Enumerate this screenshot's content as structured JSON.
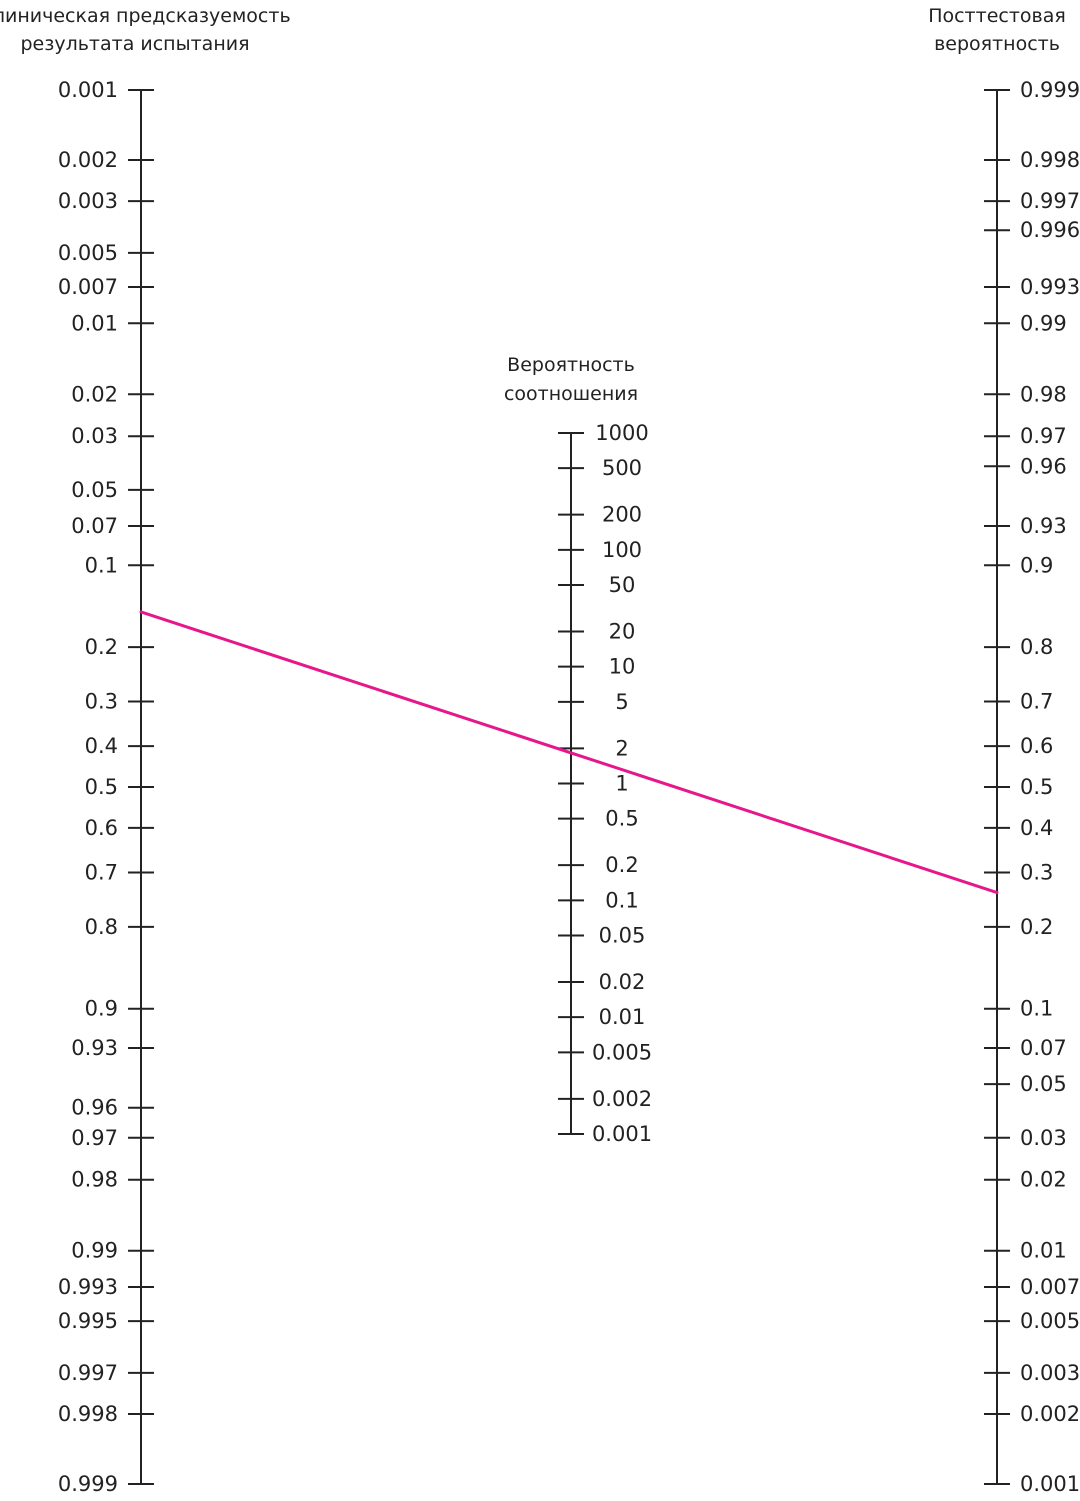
{
  "colors": {
    "axis": "#222222",
    "line": "#e6178a",
    "background": "#ffffff"
  },
  "left_axis": {
    "title_lines": [
      "Клиническая предсказуемость",
      "результата испытания"
    ],
    "ticks": [
      "0.001",
      "0.002",
      "0.003",
      "0.005",
      "0.007",
      "0.01",
      "0.02",
      "0.03",
      "0.05",
      "0.07",
      "0.1",
      "0.2",
      "0.3",
      "0.4",
      "0.5",
      "0.6",
      "0.7",
      "0.8",
      "0.9",
      "0.93",
      "0.96",
      "0.97",
      "0.98",
      "0.99",
      "0.993",
      "0.995",
      "0.997",
      "0.998",
      "0.999"
    ]
  },
  "middle_axis": {
    "title_lines": [
      "Вероятность",
      "соотношения"
    ],
    "ticks": [
      "1000",
      "500",
      "200",
      "100",
      "50",
      "20",
      "10",
      "5",
      "2",
      "1",
      "0.5",
      "0.2",
      "0.1",
      "0.05",
      "0.02",
      "0.01",
      "0.005",
      "0.002",
      "0.001"
    ]
  },
  "right_axis": {
    "title_lines": [
      "Посттестовая",
      "вероятность"
    ],
    "ticks": [
      "0.999",
      "0.998",
      "0.997",
      "0.996",
      "0.993",
      "0.99",
      "0.98",
      "0.97",
      "0.96",
      "0.93",
      "0.9",
      "0.8",
      "0.7",
      "0.6",
      "0.5",
      "0.4",
      "0.3",
      "0.2",
      "0.1",
      "0.07",
      "0.05",
      "0.03",
      "0.02",
      "0.01",
      "0.007",
      "0.005",
      "0.003",
      "0.002",
      "0.001"
    ]
  },
  "reading_line": {
    "pretest_probability": 0.15,
    "likelihood_ratio": 2,
    "posttest_probability": 0.26
  }
}
